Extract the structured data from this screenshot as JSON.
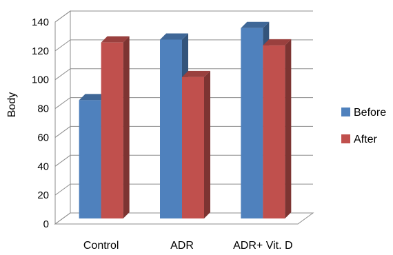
{
  "chart_data": {
    "type": "bar",
    "title": "",
    "xlabel": "",
    "ylabel": "Body",
    "ylim": [
      0,
      140
    ],
    "yticks": [
      0,
      20,
      40,
      60,
      80,
      100,
      120,
      140
    ],
    "grid": true,
    "three_d": true,
    "legend_position": "right",
    "categories": [
      "Control",
      "ADR",
      "ADR+ Vit. D"
    ],
    "series": [
      {
        "name": "Before",
        "values": [
          82,
          124,
          132
        ],
        "color": "#4F81BD"
      },
      {
        "name": "After",
        "values": [
          122,
          98,
          120
        ],
        "color": "#C0504D"
      }
    ]
  }
}
